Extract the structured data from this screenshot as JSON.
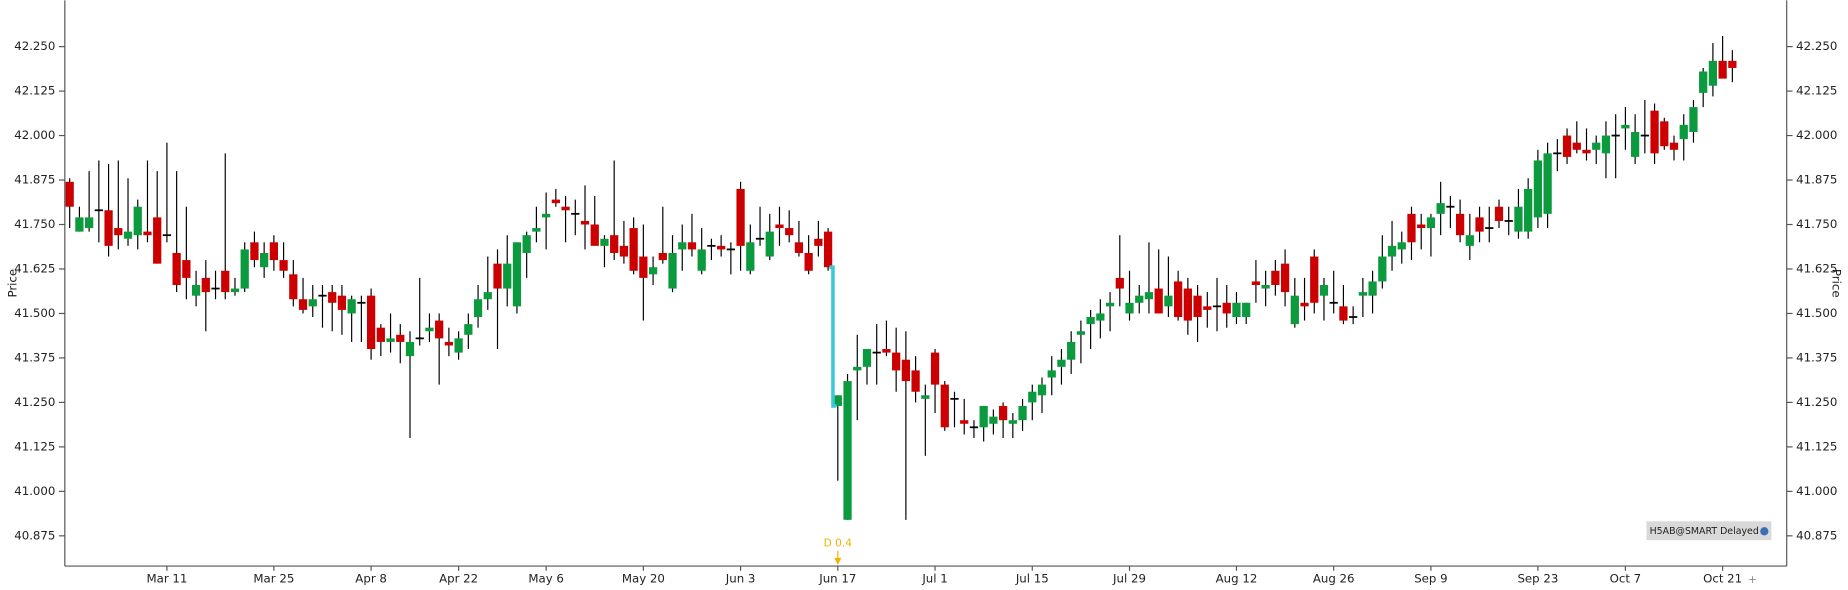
{
  "chart_data": {
    "type": "candlestick",
    "ylabel": "Price",
    "up_color": "#0b9a3e",
    "down_color": "#cc0000",
    "gap_color": "#3cc8d8",
    "annotation": {
      "text": "D 0.4",
      "index": 79,
      "color": "#f0b400"
    },
    "badge": "H5AB@SMART Delayed",
    "ylim": [
      40.79,
      42.38
    ],
    "yticks": [
      {
        "value": 40.875,
        "label": "40.875"
      },
      {
        "value": 41,
        "label": "41.000"
      },
      {
        "value": 41.125,
        "label": "41.125"
      },
      {
        "value": 41.25,
        "label": "41.250"
      },
      {
        "value": 41.375,
        "label": "41.375"
      },
      {
        "value": 41.5,
        "label": "41.500"
      },
      {
        "value": 41.625,
        "label": "41.625"
      },
      {
        "value": 41.75,
        "label": "41.750"
      },
      {
        "value": 41.875,
        "label": "41.875"
      },
      {
        "value": 42,
        "label": "42.000"
      },
      {
        "value": 42.125,
        "label": "42.125"
      },
      {
        "value": 42.25,
        "label": "42.250"
      }
    ],
    "xticks": [
      {
        "value": 10,
        "label": "Mar 11"
      },
      {
        "value": 21,
        "label": "Mar 25"
      },
      {
        "value": 31,
        "label": "Apr 8"
      },
      {
        "value": 40,
        "label": "Apr 22"
      },
      {
        "value": 49,
        "label": "May 6"
      },
      {
        "value": 59,
        "label": "May 20"
      },
      {
        "value": 69,
        "label": "Jun 3"
      },
      {
        "value": 79,
        "label": "Jun 17"
      },
      {
        "value": 89,
        "label": "Jul 1"
      },
      {
        "value": 99,
        "label": "Jul 15"
      },
      {
        "value": 109,
        "label": "Jul 29"
      },
      {
        "value": 120,
        "label": "Aug 12"
      },
      {
        "value": 130,
        "label": "Aug 26"
      },
      {
        "value": 140,
        "label": "Sep 9"
      },
      {
        "value": 151,
        "label": "Sep 23"
      },
      {
        "value": 160,
        "label": "Oct 7"
      },
      {
        "value": 170,
        "label": "Oct 21"
      }
    ],
    "candles": [
      [
        41.87,
        41.88,
        41.74,
        41.8
      ],
      [
        41.73,
        41.8,
        41.73,
        41.77
      ],
      [
        41.74,
        41.9,
        41.73,
        41.77
      ],
      [
        41.79,
        41.93,
        41.7,
        41.79
      ],
      [
        41.79,
        41.92,
        41.66,
        41.69
      ],
      [
        41.74,
        41.93,
        41.68,
        41.72
      ],
      [
        41.71,
        41.88,
        41.69,
        41.73
      ],
      [
        41.72,
        41.82,
        41.68,
        41.8
      ],
      [
        41.73,
        41.93,
        41.7,
        41.72
      ],
      [
        41.77,
        41.9,
        41.64,
        41.64
      ],
      [
        41.72,
        41.98,
        41.7,
        41.72
      ],
      [
        41.67,
        41.9,
        41.56,
        41.58
      ],
      [
        41.65,
        41.8,
        41.54,
        41.6
      ],
      [
        41.55,
        41.62,
        41.52,
        41.58
      ],
      [
        41.6,
        41.65,
        41.45,
        41.56
      ],
      [
        41.57,
        41.62,
        41.54,
        41.57
      ],
      [
        41.62,
        41.95,
        41.54,
        41.56
      ],
      [
        41.56,
        41.6,
        41.55,
        41.57
      ],
      [
        41.57,
        41.7,
        41.56,
        41.68
      ],
      [
        41.7,
        41.73,
        41.63,
        41.65
      ],
      [
        41.63,
        41.7,
        41.6,
        41.67
      ],
      [
        41.7,
        41.72,
        41.62,
        41.65
      ],
      [
        41.65,
        41.7,
        41.6,
        41.62
      ],
      [
        41.61,
        41.65,
        41.52,
        41.54
      ],
      [
        41.54,
        41.6,
        41.5,
        41.51
      ],
      [
        41.52,
        41.58,
        41.49,
        41.54
      ],
      [
        41.55,
        41.58,
        41.46,
        41.55
      ],
      [
        41.56,
        41.58,
        41.45,
        41.53
      ],
      [
        41.55,
        41.58,
        41.44,
        41.51
      ],
      [
        41.5,
        41.55,
        41.42,
        41.54
      ],
      [
        41.53,
        41.55,
        41.42,
        41.53
      ],
      [
        41.55,
        41.57,
        41.37,
        41.4
      ],
      [
        41.46,
        41.47,
        41.38,
        41.42
      ],
      [
        41.42,
        41.5,
        41.39,
        41.43
      ],
      [
        41.44,
        41.47,
        41.36,
        41.42
      ],
      [
        41.38,
        41.45,
        41.15,
        41.42
      ],
      [
        41.43,
        41.6,
        41.41,
        41.43
      ],
      [
        41.45,
        41.5,
        41.42,
        41.46
      ],
      [
        41.48,
        41.5,
        41.3,
        41.43
      ],
      [
        41.42,
        41.46,
        41.38,
        41.41
      ],
      [
        41.39,
        41.45,
        41.37,
        41.43
      ],
      [
        41.44,
        41.5,
        41.4,
        41.47
      ],
      [
        41.49,
        41.58,
        41.46,
        41.54
      ],
      [
        41.54,
        41.66,
        41.51,
        41.56
      ],
      [
        41.64,
        41.68,
        41.4,
        41.57
      ],
      [
        41.57,
        41.72,
        41.52,
        41.64
      ],
      [
        41.52,
        41.7,
        41.5,
        41.7
      ],
      [
        41.67,
        41.73,
        41.6,
        41.72
      ],
      [
        41.73,
        41.8,
        41.7,
        41.74
      ],
      [
        41.77,
        41.84,
        41.68,
        41.78
      ],
      [
        41.82,
        41.85,
        41.8,
        41.81
      ],
      [
        41.8,
        41.83,
        41.7,
        41.79
      ],
      [
        41.78,
        41.82,
        41.72,
        41.78
      ],
      [
        41.76,
        41.86,
        41.68,
        41.75
      ],
      [
        41.75,
        41.83,
        41.7,
        41.69
      ],
      [
        41.69,
        41.72,
        41.63,
        41.71
      ],
      [
        41.72,
        41.93,
        41.65,
        41.67
      ],
      [
        41.69,
        41.76,
        41.64,
        41.66
      ],
      [
        41.74,
        41.77,
        41.61,
        41.62
      ],
      [
        41.66,
        41.75,
        41.48,
        41.6
      ],
      [
        41.61,
        41.66,
        41.58,
        41.63
      ],
      [
        41.67,
        41.8,
        41.64,
        41.65
      ],
      [
        41.57,
        41.72,
        41.56,
        41.67
      ],
      [
        41.68,
        41.75,
        41.62,
        41.7
      ],
      [
        41.7,
        41.78,
        41.66,
        41.68
      ],
      [
        41.62,
        41.74,
        41.61,
        41.68
      ],
      [
        41.69,
        41.71,
        41.65,
        41.69
      ],
      [
        41.69,
        41.72,
        41.66,
        41.68
      ],
      [
        41.68,
        41.7,
        41.61,
        41.68
      ],
      [
        41.85,
        41.87,
        41.62,
        41.69
      ],
      [
        41.62,
        41.75,
        41.61,
        41.7
      ],
      [
        41.71,
        41.8,
        41.69,
        41.71
      ],
      [
        41.66,
        41.78,
        41.65,
        41.73
      ],
      [
        41.75,
        41.8,
        41.69,
        41.74
      ],
      [
        41.74,
        41.79,
        41.7,
        41.72
      ],
      [
        41.7,
        41.76,
        41.66,
        41.67
      ],
      [
        41.67,
        41.72,
        41.61,
        41.62
      ],
      [
        41.71,
        41.76,
        41.66,
        41.69
      ],
      [
        41.73,
        41.74,
        41.62,
        41.63
      ],
      [
        41.24,
        41.27,
        41.03,
        41.27
      ],
      [
        40.92,
        41.33,
        40.92,
        41.31
      ],
      [
        41.34,
        41.44,
        41.2,
        41.35
      ],
      [
        41.35,
        41.4,
        41.3,
        41.4
      ],
      [
        41.39,
        41.47,
        41.3,
        41.39
      ],
      [
        41.4,
        41.48,
        41.38,
        41.39
      ],
      [
        41.39,
        41.46,
        41.28,
        41.34
      ],
      [
        41.37,
        41.45,
        40.92,
        41.31
      ],
      [
        41.34,
        41.38,
        41.25,
        41.28
      ],
      [
        41.26,
        41.3,
        41.1,
        41.27
      ],
      [
        41.39,
        41.4,
        41.22,
        41.3
      ],
      [
        41.3,
        41.31,
        41.17,
        41.18
      ],
      [
        41.26,
        41.28,
        41.18,
        41.26
      ],
      [
        41.2,
        41.26,
        41.16,
        41.19
      ],
      [
        41.18,
        41.2,
        41.15,
        41.18
      ],
      [
        41.18,
        41.24,
        41.14,
        41.24
      ],
      [
        41.19,
        41.23,
        41.16,
        41.21
      ],
      [
        41.24,
        41.25,
        41.15,
        41.2
      ],
      [
        41.19,
        41.22,
        41.15,
        41.2
      ],
      [
        41.2,
        41.26,
        41.17,
        41.24
      ],
      [
        41.25,
        41.3,
        41.2,
        41.28
      ],
      [
        41.27,
        41.32,
        41.22,
        41.3
      ],
      [
        41.32,
        41.38,
        41.27,
        41.34
      ],
      [
        41.35,
        41.4,
        41.3,
        41.37
      ],
      [
        41.37,
        41.45,
        41.33,
        41.42
      ],
      [
        41.44,
        41.48,
        41.36,
        41.45
      ],
      [
        41.47,
        41.51,
        41.4,
        41.49
      ],
      [
        41.48,
        41.54,
        41.43,
        41.5
      ],
      [
        41.52,
        41.56,
        41.45,
        41.53
      ],
      [
        41.6,
        41.72,
        41.52,
        41.57
      ],
      [
        41.5,
        41.62,
        41.48,
        41.53
      ],
      [
        41.53,
        41.58,
        41.5,
        41.55
      ],
      [
        41.54,
        41.7,
        41.5,
        41.56
      ],
      [
        41.57,
        41.68,
        41.5,
        41.5
      ],
      [
        41.52,
        41.66,
        41.49,
        41.55
      ],
      [
        41.59,
        41.62,
        41.48,
        41.49
      ],
      [
        41.57,
        41.6,
        41.44,
        41.48
      ],
      [
        41.55,
        41.58,
        41.42,
        41.49
      ],
      [
        41.52,
        41.56,
        41.46,
        41.51
      ],
      [
        41.52,
        41.6,
        41.45,
        41.52
      ],
      [
        41.53,
        41.58,
        41.46,
        41.5
      ],
      [
        41.49,
        41.56,
        41.47,
        41.53
      ],
      [
        41.49,
        41.53,
        41.47,
        41.53
      ],
      [
        41.59,
        41.65,
        41.53,
        41.58
      ],
      [
        41.57,
        41.62,
        41.52,
        41.58
      ],
      [
        41.62,
        41.65,
        41.55,
        41.58
      ],
      [
        41.64,
        41.68,
        41.52,
        41.56
      ],
      [
        41.47,
        41.6,
        41.46,
        41.55
      ],
      [
        41.53,
        41.6,
        41.48,
        41.52
      ],
      [
        41.66,
        41.68,
        41.5,
        41.53
      ],
      [
        41.55,
        41.6,
        41.48,
        41.58
      ],
      [
        41.53,
        41.62,
        41.5,
        41.53
      ],
      [
        41.52,
        41.58,
        41.47,
        41.48
      ],
      [
        41.49,
        41.52,
        41.47,
        41.49
      ],
      [
        41.55,
        41.6,
        41.49,
        41.56
      ],
      [
        41.55,
        41.62,
        41.5,
        41.59
      ],
      [
        41.59,
        41.72,
        41.57,
        41.66
      ],
      [
        41.66,
        41.76,
        41.62,
        41.69
      ],
      [
        41.68,
        41.73,
        41.64,
        41.7
      ],
      [
        41.78,
        41.8,
        41.65,
        41.7
      ],
      [
        41.75,
        41.78,
        41.68,
        41.74
      ],
      [
        41.74,
        41.78,
        41.66,
        41.77
      ],
      [
        41.78,
        41.87,
        41.72,
        41.81
      ],
      [
        41.8,
        41.83,
        41.74,
        41.8
      ],
      [
        41.78,
        41.82,
        41.7,
        41.72
      ],
      [
        41.69,
        41.78,
        41.65,
        41.72
      ],
      [
        41.77,
        41.8,
        41.7,
        41.73
      ],
      [
        41.74,
        41.8,
        41.7,
        41.74
      ],
      [
        41.8,
        41.82,
        41.74,
        41.76
      ],
      [
        41.76,
        41.8,
        41.72,
        41.76
      ],
      [
        41.73,
        41.85,
        41.71,
        41.8
      ],
      [
        41.73,
        41.88,
        41.71,
        41.85
      ],
      [
        41.77,
        41.96,
        41.74,
        41.93
      ],
      [
        41.78,
        41.98,
        41.74,
        41.95
      ],
      [
        41.95,
        41.99,
        41.9,
        41.95
      ],
      [
        42.0,
        42.02,
        41.92,
        41.94
      ],
      [
        41.98,
        42.04,
        41.95,
        41.96
      ],
      [
        41.96,
        42.02,
        41.93,
        41.95
      ],
      [
        41.96,
        42.0,
        41.92,
        41.98
      ],
      [
        41.95,
        42.04,
        41.88,
        42.0
      ],
      [
        42.0,
        42.06,
        41.88,
        42.0
      ],
      [
        42.02,
        42.08,
        41.96,
        42.03
      ],
      [
        41.94,
        42.06,
        41.92,
        42.01
      ],
      [
        42.0,
        42.1,
        41.95,
        42.0
      ],
      [
        42.07,
        42.09,
        41.92,
        41.95
      ],
      [
        42.04,
        42.05,
        41.96,
        41.97
      ],
      [
        41.98,
        42.0,
        41.93,
        41.96
      ],
      [
        41.99,
        42.06,
        41.93,
        42.03
      ],
      [
        42.01,
        42.1,
        41.98,
        42.08
      ],
      [
        42.12,
        42.19,
        42.08,
        42.18
      ],
      [
        42.14,
        42.26,
        42.11,
        42.21
      ],
      [
        42.21,
        42.28,
        42.17,
        42.16
      ],
      [
        42.21,
        42.24,
        42.15,
        42.19
      ]
    ]
  }
}
